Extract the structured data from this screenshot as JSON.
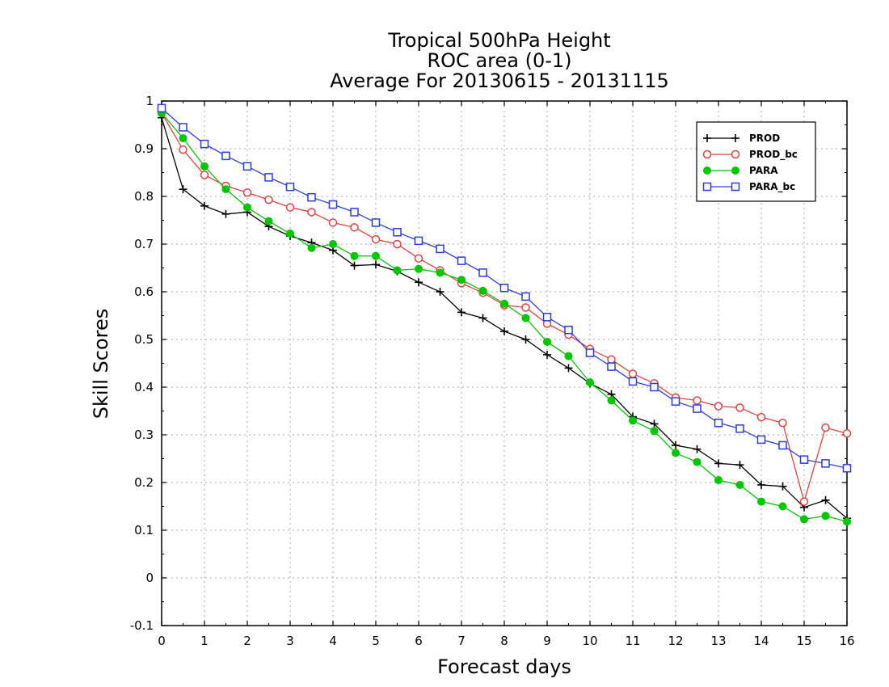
{
  "chart_data": {
    "type": "line",
    "title": [
      "Tropical 500hPa Height",
      "ROC area (0-1)",
      "Average For 20130615 - 20131115"
    ],
    "xlabel": "Forecast days",
    "ylabel": "Skill Scores",
    "xlim": [
      0,
      16
    ],
    "ylim": [
      -0.1,
      1
    ],
    "xticks": [
      0,
      1,
      2,
      3,
      4,
      5,
      6,
      7,
      8,
      9,
      10,
      11,
      12,
      13,
      14,
      15,
      16
    ],
    "yticks": [
      -0.1,
      0,
      0.1,
      0.2,
      0.3,
      0.4,
      0.5,
      0.6,
      0.7,
      0.8,
      0.9,
      1
    ],
    "ytick_labels": [
      "-0.1",
      "0",
      "0.1",
      "0.2",
      "0.3",
      "0.4",
      "0.5",
      "0.6",
      "0.7",
      "0.8",
      "0.9",
      "1"
    ],
    "grid": true,
    "legend_position": "top-right",
    "x": [
      0,
      0.5,
      1,
      1.5,
      2,
      2.5,
      3,
      3.5,
      4,
      4.5,
      5,
      5.5,
      6,
      6.5,
      7,
      7.5,
      8,
      8.5,
      9,
      9.5,
      10,
      10.5,
      11,
      11.5,
      12,
      12.5,
      13,
      13.5,
      14,
      14.5,
      15,
      15.5,
      16
    ],
    "series": [
      {
        "name": "PROD",
        "color": "#000000",
        "marker": "plus",
        "values": [
          0.965,
          0.815,
          0.78,
          0.763,
          0.767,
          0.737,
          0.717,
          0.703,
          0.687,
          0.655,
          0.657,
          0.643,
          0.62,
          0.6,
          0.557,
          0.545,
          0.517,
          0.5,
          0.468,
          0.44,
          0.408,
          0.385,
          0.338,
          0.323,
          0.278,
          0.27,
          0.24,
          0.237,
          0.195,
          0.192,
          0.148,
          0.163,
          0.125
        ]
      },
      {
        "name": "PROD_bc",
        "color": "#e84040",
        "marker": "circle-open",
        "values": [
          0.975,
          0.898,
          0.845,
          0.822,
          0.808,
          0.793,
          0.777,
          0.767,
          0.745,
          0.735,
          0.71,
          0.7,
          0.67,
          0.645,
          0.618,
          0.598,
          0.572,
          0.567,
          0.533,
          0.51,
          0.48,
          0.458,
          0.428,
          0.408,
          0.378,
          0.372,
          0.36,
          0.357,
          0.337,
          0.325,
          0.16,
          0.315,
          0.303
        ]
      },
      {
        "name": "PARA",
        "color": "#00c800",
        "marker": "circle-filled",
        "values": [
          0.975,
          0.922,
          0.863,
          0.815,
          0.777,
          0.748,
          0.722,
          0.692,
          0.7,
          0.675,
          0.675,
          0.645,
          0.648,
          0.64,
          0.625,
          0.602,
          0.575,
          0.545,
          0.495,
          0.465,
          0.41,
          0.372,
          0.33,
          0.308,
          0.262,
          0.243,
          0.205,
          0.195,
          0.16,
          0.15,
          0.123,
          0.13,
          0.118
        ]
      },
      {
        "name": "PARA_bc",
        "color": "#2a3ce8",
        "marker": "square-open",
        "values": [
          0.985,
          0.945,
          0.91,
          0.885,
          0.863,
          0.84,
          0.82,
          0.798,
          0.783,
          0.767,
          0.745,
          0.725,
          0.707,
          0.69,
          0.665,
          0.64,
          0.608,
          0.59,
          0.547,
          0.52,
          0.472,
          0.443,
          0.412,
          0.4,
          0.37,
          0.355,
          0.325,
          0.313,
          0.29,
          0.278,
          0.248,
          0.24,
          0.23
        ]
      }
    ]
  }
}
